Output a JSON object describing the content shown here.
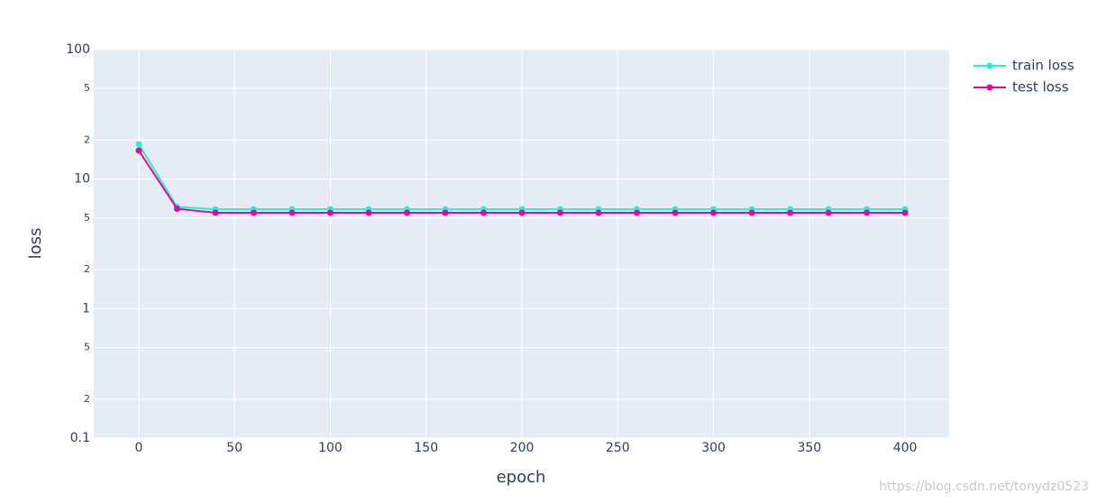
{
  "chart_data": {
    "type": "line",
    "x_label": "epoch",
    "y_label": "loss",
    "x": [
      0,
      20,
      40,
      60,
      80,
      100,
      120,
      140,
      160,
      180,
      200,
      220,
      240,
      260,
      280,
      300,
      320,
      340,
      360,
      380,
      400
    ],
    "series": [
      {
        "name": "train loss",
        "color": "#1ff5d2",
        "values": [
          18.6,
          6.1,
          5.85,
          5.85,
          5.85,
          5.85,
          5.85,
          5.85,
          5.85,
          5.85,
          5.85,
          5.85,
          5.85,
          5.85,
          5.85,
          5.85,
          5.85,
          5.85,
          5.85,
          5.85,
          5.85
        ]
      },
      {
        "name": "test loss",
        "color": "#e6079c",
        "values": [
          16.6,
          5.9,
          5.5,
          5.5,
          5.5,
          5.5,
          5.5,
          5.5,
          5.5,
          5.5,
          5.5,
          5.5,
          5.5,
          5.5,
          5.5,
          5.5,
          5.5,
          5.5,
          5.5,
          5.5,
          5.5
        ]
      }
    ],
    "xlim": [
      -23.5,
      423
    ],
    "xticks": [
      0,
      50,
      100,
      150,
      200,
      250,
      300,
      350,
      400
    ],
    "ylim": [
      0.1,
      100
    ],
    "log_y": true,
    "yticks": [
      0.1,
      {
        "value": 0.2,
        "label": "2"
      },
      {
        "value": 0.5,
        "label": "5"
      },
      1,
      {
        "value": 2,
        "label": "2"
      },
      {
        "value": 5,
        "label": "5"
      },
      10,
      {
        "value": 20,
        "label": "2"
      },
      {
        "value": 50,
        "label": "5"
      },
      100
    ],
    "grid": true,
    "legend_position": "right",
    "watermark": "https://blog.csdn.net/tonydz0523"
  }
}
